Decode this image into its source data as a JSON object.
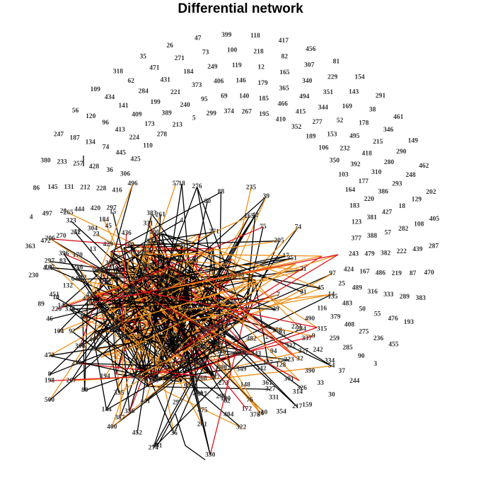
{
  "title": "Differential network",
  "colors": {
    "edge_default": "#000000",
    "edge_orange": "#f0901a",
    "edge_red": "#e0101a",
    "label": "#333333",
    "background": "#ffffff"
  },
  "arc_labels": [
    "89",
    "451",
    "132",
    "412",
    "364",
    "366",
    "230",
    "421",
    "83",
    "170",
    "13",
    "429",
    "363",
    "472",
    "270",
    "41",
    "304",
    "45",
    "4",
    "497",
    "20",
    "444",
    "420",
    "297",
    "86",
    "145",
    "131",
    "212",
    "228",
    "416",
    "380",
    "233",
    "257",
    "428",
    "36",
    "306",
    "247",
    "187",
    "134",
    "74",
    "445",
    "425",
    "56",
    "120",
    "96",
    "413",
    "224",
    "110",
    "109",
    "434",
    "141",
    "409",
    "173",
    "278",
    "318",
    "62",
    "284",
    "199",
    "389",
    "213",
    "35",
    "471",
    "431",
    "221",
    "240",
    "5",
    "26",
    "271",
    "184",
    "373",
    "95",
    "299",
    "47",
    "73",
    "249",
    "406",
    "69",
    "374",
    "399",
    "100",
    "119",
    "146",
    "140",
    "267",
    "118",
    "218",
    "12",
    "179",
    "185",
    "195",
    "417",
    "82",
    "165",
    "365",
    "466",
    "410",
    "456",
    "307",
    "340",
    "494",
    "415",
    "352",
    "81",
    "229",
    "351",
    "344",
    "277",
    "189",
    "154",
    "143",
    "169",
    "52",
    "153",
    "106",
    "291",
    "38",
    "178",
    "495",
    "232",
    "350",
    "461",
    "346",
    "215",
    "418",
    "392",
    "103",
    "149",
    "290",
    "280",
    "310",
    "177",
    "164",
    "462",
    "248",
    "293",
    "386",
    "220",
    "183",
    "202",
    "129",
    "18",
    "427",
    "381",
    "123",
    "405",
    "108",
    "282",
    "57",
    "388",
    "377",
    "287",
    "439",
    "222",
    "382",
    "479",
    "243",
    "470",
    "87",
    "219",
    "486",
    "167",
    "424",
    "383",
    "289",
    "333",
    "316",
    "489",
    "25",
    "193",
    "476",
    "55",
    "50",
    "483",
    "135",
    "455",
    "236",
    "275",
    "408",
    "379",
    "116",
    "3",
    "90",
    "285",
    "259",
    "315",
    "490",
    "244",
    "37",
    "334",
    "242",
    "337",
    "223",
    "30",
    "33",
    "390",
    "32",
    "332",
    "93",
    "159",
    "314",
    "301",
    "128",
    "94",
    "2",
    "354",
    "331",
    "361",
    "342",
    "443",
    "482",
    "378",
    "76",
    "148",
    "349",
    "345",
    "367",
    "404",
    "190",
    "273",
    "400",
    "348",
    "313",
    "475",
    "347",
    "268",
    "211",
    "16",
    "262",
    "297"
  ],
  "hub_labels": [
    "234",
    "9",
    "158",
    "227",
    "323",
    "54",
    "326",
    "137",
    "217",
    "327",
    "26",
    "10",
    "172",
    "322",
    "62",
    "298",
    "201",
    "204",
    "330",
    "36",
    "461",
    "274",
    "452",
    "441",
    "356",
    "387",
    "144",
    "400",
    "335",
    "80",
    "194",
    "207",
    "500",
    "198",
    "210",
    "300",
    "8",
    "473",
    "104",
    "92",
    "46",
    "338",
    "226",
    "142",
    "19",
    "64",
    "297",
    "147",
    "396",
    "286",
    "206",
    "323",
    "252",
    "265",
    "23",
    "184",
    "15",
    "436",
    "331",
    "496",
    "261",
    "383",
    "18",
    "57",
    "4",
    "276",
    "60",
    "88",
    "371",
    "235",
    "39",
    "165",
    "42",
    "75",
    "205",
    "74",
    "351",
    "17",
    "71",
    "97",
    "7",
    "45",
    "21",
    "14",
    "29"
  ]
}
